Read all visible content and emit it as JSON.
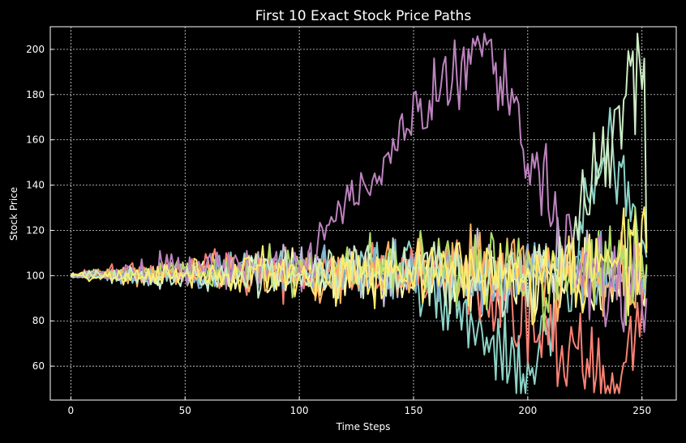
{
  "chart_data": {
    "type": "line",
    "title": "First 10 Exact Stock Price Paths",
    "xlabel": "Time Steps",
    "ylabel": "Stock Price",
    "xlim": [
      -9,
      265
    ],
    "ylim": [
      45,
      210
    ],
    "xticks": [
      0,
      50,
      100,
      150,
      200,
      250
    ],
    "yticks": [
      60,
      80,
      100,
      120,
      140,
      160,
      180,
      200
    ],
    "grid": true,
    "legend": "none",
    "background": "#000000",
    "colors": [
      "#8dd3c7",
      "#feffb3",
      "#bfbbd9",
      "#fa8174",
      "#81b1d2",
      "#fdb462",
      "#b3de69",
      "#bc82bd",
      "#ccebc4",
      "#ffed6f"
    ],
    "n_points": 253,
    "start_value": 100,
    "series": [
      {
        "color": "#8dd3c7",
        "keypoints": [
          [
            0,
            100
          ],
          [
            40,
            100
          ],
          [
            90,
            104
          ],
          [
            150,
            103
          ],
          [
            201,
            56
          ],
          [
            220,
            104
          ],
          [
            235,
            160
          ],
          [
            252,
            108
          ]
        ],
        "spread": [
          [
            0,
            1
          ],
          [
            40,
            7
          ],
          [
            100,
            13
          ],
          [
            150,
            18
          ],
          [
            200,
            24
          ],
          [
            252,
            28
          ]
        ]
      },
      {
        "color": "#feffb3",
        "keypoints": [
          [
            0,
            100
          ],
          [
            50,
            102
          ],
          [
            100,
            100
          ],
          [
            160,
            101
          ],
          [
            210,
            98
          ],
          [
            252,
            104
          ]
        ],
        "spread": [
          [
            0,
            1
          ],
          [
            40,
            7
          ],
          [
            100,
            12
          ],
          [
            150,
            17
          ],
          [
            200,
            22
          ],
          [
            252,
            26
          ]
        ]
      },
      {
        "color": "#bfbbd9",
        "keypoints": [
          [
            0,
            100
          ],
          [
            50,
            101
          ],
          [
            100,
            103
          ],
          [
            160,
            102
          ],
          [
            210,
            103
          ],
          [
            252,
            102
          ]
        ],
        "spread": [
          [
            0,
            1
          ],
          [
            40,
            7
          ],
          [
            100,
            12
          ],
          [
            150,
            16
          ],
          [
            200,
            20
          ],
          [
            252,
            24
          ]
        ]
      },
      {
        "color": "#fa8174",
        "keypoints": [
          [
            0,
            100
          ],
          [
            50,
            103
          ],
          [
            100,
            101
          ],
          [
            170,
            104
          ],
          [
            239,
            52
          ],
          [
            252,
            100
          ]
        ],
        "spread": [
          [
            0,
            1
          ],
          [
            40,
            8
          ],
          [
            100,
            13
          ],
          [
            150,
            17
          ],
          [
            200,
            22
          ],
          [
            252,
            26
          ]
        ]
      },
      {
        "color": "#81b1d2",
        "keypoints": [
          [
            0,
            100
          ],
          [
            50,
            100
          ],
          [
            100,
            102
          ],
          [
            160,
            100
          ],
          [
            210,
            101
          ],
          [
            252,
            101
          ]
        ],
        "spread": [
          [
            0,
            1
          ],
          [
            40,
            7
          ],
          [
            100,
            12
          ],
          [
            150,
            16
          ],
          [
            200,
            21
          ],
          [
            252,
            25
          ]
        ]
      },
      {
        "color": "#fdb462",
        "keypoints": [
          [
            0,
            100
          ],
          [
            50,
            101
          ],
          [
            100,
            100
          ],
          [
            160,
            103
          ],
          [
            210,
            100
          ],
          [
            252,
            99
          ]
        ],
        "spread": [
          [
            0,
            1
          ],
          [
            40,
            7
          ],
          [
            100,
            12
          ],
          [
            150,
            17
          ],
          [
            200,
            21
          ],
          [
            252,
            25
          ]
        ]
      },
      {
        "color": "#b3de69",
        "keypoints": [
          [
            0,
            100
          ],
          [
            50,
            102
          ],
          [
            100,
            104
          ],
          [
            160,
            102
          ],
          [
            210,
            100
          ],
          [
            252,
            105
          ]
        ],
        "spread": [
          [
            0,
            1
          ],
          [
            40,
            7
          ],
          [
            100,
            12
          ],
          [
            150,
            17
          ],
          [
            200,
            22
          ],
          [
            252,
            26
          ]
        ]
      },
      {
        "color": "#bc82bd",
        "keypoints": [
          [
            0,
            100
          ],
          [
            50,
            103
          ],
          [
            100,
            104
          ],
          [
            147,
            165
          ],
          [
            182,
            202
          ],
          [
            220,
            104
          ],
          [
            252,
            90
          ]
        ],
        "spread": [
          [
            0,
            1
          ],
          [
            40,
            8
          ],
          [
            100,
            13
          ],
          [
            150,
            19
          ],
          [
            200,
            24
          ],
          [
            252,
            28
          ]
        ]
      },
      {
        "color": "#ccebc4",
        "keypoints": [
          [
            0,
            100
          ],
          [
            50,
            100
          ],
          [
            100,
            101
          ],
          [
            160,
            102
          ],
          [
            210,
            100
          ],
          [
            251,
            196
          ],
          [
            252,
            112
          ]
        ],
        "spread": [
          [
            0,
            1
          ],
          [
            40,
            7
          ],
          [
            100,
            12
          ],
          [
            150,
            17
          ],
          [
            200,
            22
          ],
          [
            252,
            27
          ]
        ]
      },
      {
        "color": "#ffed6f",
        "keypoints": [
          [
            0,
            100
          ],
          [
            50,
            101
          ],
          [
            100,
            100
          ],
          [
            160,
            102
          ],
          [
            210,
            101
          ],
          [
            252,
            110
          ]
        ],
        "spread": [
          [
            0,
            1
          ],
          [
            40,
            8
          ],
          [
            100,
            13
          ],
          [
            150,
            18
          ],
          [
            200,
            23
          ],
          [
            252,
            28
          ]
        ]
      }
    ]
  }
}
